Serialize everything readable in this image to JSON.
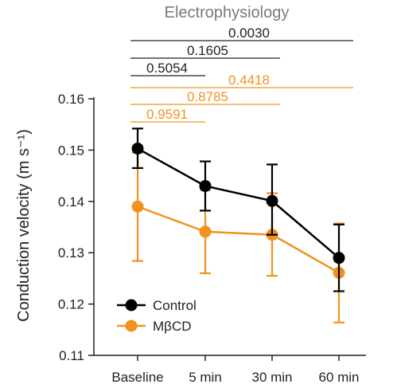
{
  "chart_data": {
    "type": "line",
    "title": "Electrophysiology",
    "ylabel": "Conduction velocity (m s⁻¹)",
    "xlabel": "",
    "categories": [
      "Baseline",
      "5 min",
      "30 min",
      "60 min"
    ],
    "ylim": [
      0.11,
      0.16
    ],
    "yticks": [
      "0.11",
      "0.12",
      "0.13",
      "0.14",
      "0.15",
      "0.16"
    ],
    "grid": false,
    "legend_position": "bottom-left",
    "series": [
      {
        "name": "Control",
        "color": "#000000",
        "values": [
          0.1503,
          0.143,
          0.1401,
          0.129
        ],
        "error_lower": [
          0.1465,
          0.1382,
          0.1335,
          0.1225
        ],
        "error_upper": [
          0.1542,
          0.1478,
          0.1472,
          0.1355
        ]
      },
      {
        "name": "MβCD",
        "color": "#f0921e",
        "values": [
          0.139,
          0.1341,
          0.1335,
          0.1261
        ],
        "error_lower": [
          0.1284,
          0.126,
          0.1255,
          0.1164
        ],
        "error_upper": [
          0.1495,
          0.1422,
          0.1416,
          0.1357
        ]
      }
    ],
    "comparisons": [
      {
        "series": "Control",
        "from": "Baseline",
        "to": "60 min",
        "p": "0.0030"
      },
      {
        "series": "Control",
        "from": "Baseline",
        "to": "30 min",
        "p": "0.1605"
      },
      {
        "series": "Control",
        "from": "Baseline",
        "to": "5 min",
        "p": "0.5054"
      },
      {
        "series": "MβCD",
        "from": "Baseline",
        "to": "60 min",
        "p": "0.4418"
      },
      {
        "series": "MβCD",
        "from": "Baseline",
        "to": "30 min",
        "p": "0.8785"
      },
      {
        "series": "MβCD",
        "from": "Baseline",
        "to": "5 min",
        "p": "0.9591"
      }
    ],
    "comparison_colors": {
      "Control": "#222222",
      "MβCD": "#f0921e"
    }
  }
}
